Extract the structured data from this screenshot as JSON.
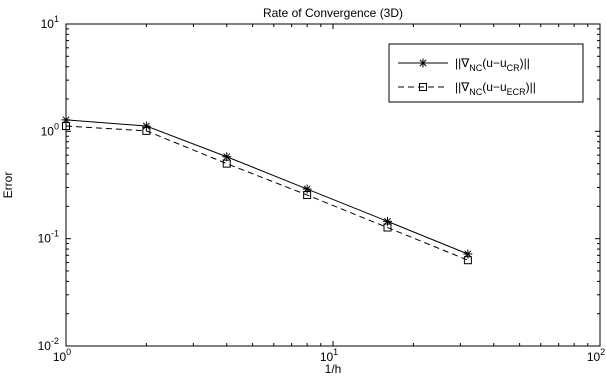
{
  "chart_data": {
    "type": "line",
    "title": "Rate of Convergence (3D)",
    "xlabel": "1/h",
    "ylabel": "Error",
    "xscale": "log",
    "yscale": "log",
    "xlim": [
      1,
      100
    ],
    "ylim": [
      0.01,
      10
    ],
    "grid": false,
    "legend_position": "top-right",
    "x_ticks": [
      {
        "base": "10",
        "exp": "0"
      },
      {
        "base": "10",
        "exp": "1"
      },
      {
        "base": "10",
        "exp": "2"
      }
    ],
    "y_ticks": [
      {
        "base": "10",
        "exp": "-2"
      },
      {
        "base": "10",
        "exp": "-1"
      },
      {
        "base": "10",
        "exp": "0"
      },
      {
        "base": "10",
        "exp": "1"
      }
    ],
    "x": [
      1,
      2,
      4,
      8,
      16,
      32
    ],
    "series": [
      {
        "legend_parts": [
          "||∇",
          "NC",
          "(u−u",
          "CR",
          ")||"
        ],
        "values": [
          1.28,
          1.12,
          0.58,
          0.29,
          0.145,
          0.072
        ],
        "line_style": "solid",
        "marker": "asterisk",
        "color": "#000000"
      },
      {
        "legend_parts": [
          "||∇",
          "NC",
          "(u−u",
          "ECR",
          ")||"
        ],
        "values": [
          1.12,
          1.01,
          0.5,
          0.255,
          0.127,
          0.063
        ],
        "line_style": "dashed",
        "marker": "square",
        "color": "#000000"
      }
    ]
  }
}
